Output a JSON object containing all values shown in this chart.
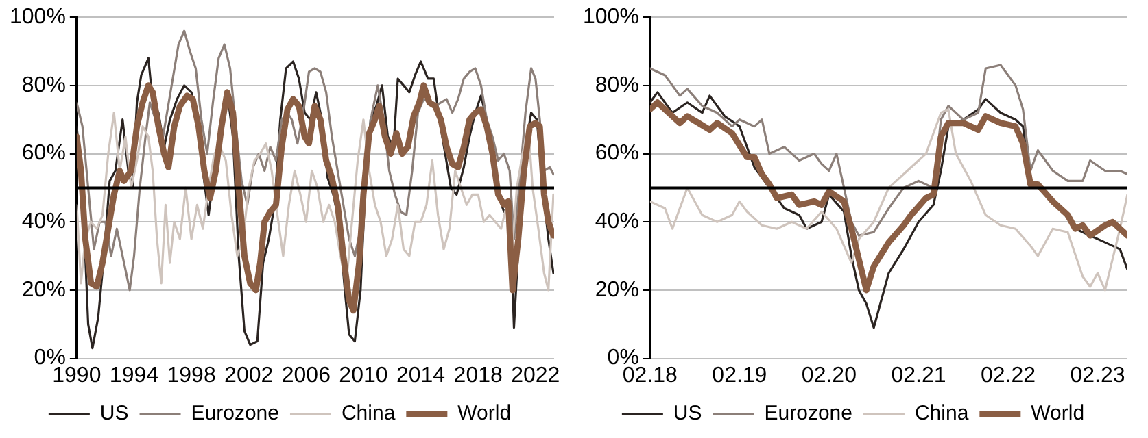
{
  "chart_data": [
    {
      "type": "line",
      "xlim": [
        1990,
        2023.3
      ],
      "xticks": [
        1990,
        1994,
        1998,
        2002,
        2006,
        2010,
        2014,
        2018,
        2022
      ],
      "ylim": [
        0,
        100
      ],
      "yticks": [
        {
          "value": 0,
          "label": "0%"
        },
        {
          "value": 20,
          "label": "20%"
        },
        {
          "value": 40,
          "label": "40%"
        },
        {
          "value": 60,
          "label": "60%"
        },
        {
          "value": 80,
          "label": "80%"
        },
        {
          "value": 100,
          "label": "100%"
        }
      ],
      "grid": "y",
      "legend": "bottom",
      "marker": "none",
      "line_style": "solid",
      "ref_lines": [
        {
          "axis": "y",
          "value": 50,
          "color": "#000000"
        }
      ],
      "series": [
        {
          "name": "US",
          "color": "#2b2421",
          "x": [
            1990,
            1990.4,
            1990.8,
            1991.1,
            1991.5,
            1991.9,
            1992.3,
            1992.7,
            1993.2,
            1993.6,
            1993.9,
            1994.2,
            1994.5,
            1995.0,
            1995.3,
            1995.7,
            1996.1,
            1996.5,
            1997.0,
            1997.5,
            1998.0,
            1998.4,
            1998.8,
            1999.2,
            1999.6,
            2000.0,
            2000.5,
            2000.9,
            2001.3,
            2001.7,
            2002.1,
            2002.6,
            2003.0,
            2003.4,
            2003.8,
            2004.2,
            2004.6,
            2005.1,
            2005.5,
            2005.9,
            2006.3,
            2006.7,
            2007.1,
            2007.5,
            2007.9,
            2008.3,
            2008.7,
            2009.0,
            2009.4,
            2009.8,
            2010.1,
            2010.5,
            2010.9,
            2011.3,
            2011.7,
            2012.1,
            2012.4,
            2012.8,
            2013.2,
            2013.6,
            2014.0,
            2014.5,
            2014.9,
            2015.3,
            2015.7,
            2016.1,
            2016.5,
            2017.0,
            2017.4,
            2017.8,
            2018.2,
            2018.6,
            2019.0,
            2019.4,
            2019.8,
            2020.2,
            2020.5,
            2020.9,
            2021.3,
            2021.7,
            2022.1,
            2022.5,
            2022.9,
            2023.25
          ],
          "values": [
            68,
            50,
            10,
            3,
            12,
            30,
            52,
            55,
            70,
            55,
            50,
            75,
            83,
            88,
            75,
            72,
            62,
            70,
            76,
            80,
            78,
            72,
            55,
            42,
            55,
            68,
            78,
            65,
            30,
            8,
            4,
            5,
            28,
            35,
            45,
            70,
            85,
            87,
            82,
            72,
            70,
            78,
            70,
            53,
            48,
            40,
            20,
            7,
            5,
            20,
            48,
            70,
            74,
            80,
            65,
            62,
            82,
            80,
            78,
            83,
            87,
            82,
            82,
            70,
            60,
            50,
            48,
            56,
            65,
            72,
            77,
            70,
            58,
            48,
            43,
            45,
            9,
            40,
            62,
            72,
            70,
            50,
            35,
            25
          ]
        },
        {
          "name": "Eurozone",
          "color": "#8c7f79",
          "x": [
            1990,
            1990.4,
            1990.8,
            1991.2,
            1991.6,
            1992.0,
            1992.4,
            1992.8,
            1993.2,
            1993.7,
            1994.0,
            1994.4,
            1994.8,
            1995.1,
            1995.5,
            1995.9,
            1996.3,
            1996.7,
            1997.1,
            1997.5,
            1997.9,
            1998.3,
            1998.7,
            1999.1,
            1999.5,
            1999.9,
            2000.3,
            2000.7,
            2001.1,
            2001.5,
            2001.9,
            2002.3,
            2002.7,
            2003.1,
            2003.5,
            2003.9,
            2004.3,
            2004.7,
            2005.0,
            2005.4,
            2005.8,
            2006.2,
            2006.6,
            2007.0,
            2007.4,
            2007.8,
            2008.2,
            2008.6,
            2009.0,
            2009.4,
            2009.8,
            2010.2,
            2010.6,
            2011.0,
            2011.4,
            2011.8,
            2012.2,
            2012.6,
            2013.0,
            2013.4,
            2013.8,
            2014.2,
            2014.6,
            2015.0,
            2015.4,
            2015.8,
            2016.2,
            2016.6,
            2017.0,
            2017.4,
            2017.8,
            2018.2,
            2018.6,
            2019.0,
            2019.4,
            2019.8,
            2020.2,
            2020.5,
            2020.9,
            2021.3,
            2021.7,
            2022.0,
            2022.3,
            2022.6,
            2023.0,
            2023.25
          ],
          "values": [
            75,
            68,
            50,
            32,
            40,
            40,
            30,
            38,
            30,
            20,
            30,
            50,
            65,
            75,
            70,
            62,
            72,
            82,
            92,
            96,
            90,
            85,
            70,
            60,
            75,
            88,
            92,
            85,
            68,
            52,
            45,
            56,
            60,
            55,
            62,
            58,
            70,
            72,
            70,
            63,
            72,
            84,
            85,
            84,
            78,
            65,
            55,
            45,
            35,
            30,
            38,
            60,
            72,
            80,
            70,
            55,
            48,
            43,
            42,
            55,
            72,
            76,
            75,
            74,
            75,
            76,
            72,
            76,
            82,
            84,
            85,
            80,
            70,
            65,
            58,
            60,
            55,
            35,
            52,
            72,
            85,
            82,
            70,
            55,
            56,
            54
          ]
        },
        {
          "name": "China",
          "color": "#cfc4bd",
          "x": [
            1990,
            1990.3,
            1990.6,
            1991.0,
            1991.4,
            1991.8,
            1992.2,
            1992.6,
            1993.0,
            1993.4,
            1993.8,
            1994.2,
            1994.6,
            1995.0,
            1995.3,
            1995.6,
            1995.9,
            1996.2,
            1996.5,
            1996.8,
            1997.2,
            1997.6,
            1998.0,
            1998.4,
            1998.8,
            1999.2,
            1999.6,
            2000.0,
            2000.4,
            2000.8,
            2001.2,
            2001.6,
            2002.0,
            2002.4,
            2002.8,
            2003.2,
            2003.6,
            2004.0,
            2004.4,
            2004.8,
            2005.2,
            2005.6,
            2006.0,
            2006.4,
            2006.8,
            2007.2,
            2007.6,
            2008.0,
            2008.4,
            2008.8,
            2009.2,
            2009.6,
            2010.0,
            2010.4,
            2010.8,
            2011.2,
            2011.6,
            2012.0,
            2012.4,
            2012.8,
            2013.2,
            2013.6,
            2014.0,
            2014.4,
            2014.8,
            2015.2,
            2015.6,
            2016.0,
            2016.4,
            2016.8,
            2017.2,
            2017.6,
            2018.0,
            2018.4,
            2018.8,
            2019.2,
            2019.6,
            2020.0,
            2020.3,
            2020.7,
            2021.1,
            2021.5,
            2021.8,
            2022.2,
            2022.6,
            2022.9,
            2023.25
          ],
          "values": [
            45,
            22,
            35,
            40,
            38,
            42,
            60,
            72,
            55,
            65,
            50,
            58,
            68,
            65,
            55,
            35,
            22,
            45,
            28,
            40,
            35,
            50,
            35,
            45,
            38,
            50,
            60,
            62,
            58,
            42,
            30,
            35,
            50,
            58,
            60,
            63,
            55,
            42,
            30,
            45,
            55,
            48,
            40,
            55,
            50,
            40,
            45,
            40,
            30,
            22,
            40,
            58,
            70,
            55,
            45,
            40,
            30,
            35,
            45,
            32,
            30,
            40,
            40,
            45,
            58,
            42,
            32,
            38,
            55,
            50,
            45,
            48,
            48,
            40,
            42,
            40,
            38,
            45,
            28,
            50,
            60,
            68,
            50,
            38,
            25,
            20,
            48
          ]
        },
        {
          "name": "World",
          "color": "#8b5e44",
          "x": [
            1990.0,
            1990.3,
            1990.6,
            1991.0,
            1991.4,
            1991.8,
            1992.2,
            1992.6,
            1993.0,
            1993.3,
            1993.8,
            1994.2,
            1994.6,
            1995.0,
            1995.3,
            1995.7,
            1996.1,
            1996.4,
            1996.8,
            1997.2,
            1997.7,
            1998.1,
            1998.5,
            1998.9,
            1999.3,
            1999.7,
            2000.1,
            2000.5,
            2000.9,
            2001.3,
            2001.7,
            2002.1,
            2002.5,
            2002.8,
            2003.1,
            2003.5,
            2003.9,
            2004.3,
            2004.7,
            2005.1,
            2005.5,
            2005.9,
            2006.2,
            2006.6,
            2007.0,
            2007.4,
            2007.8,
            2008.2,
            2008.6,
            2009.0,
            2009.3,
            2009.7,
            2010.0,
            2010.4,
            2010.8,
            2011.1,
            2011.5,
            2011.9,
            2012.3,
            2012.7,
            2013.1,
            2013.5,
            2013.9,
            2014.2,
            2014.6,
            2015.0,
            2015.4,
            2015.8,
            2016.2,
            2016.6,
            2017.0,
            2017.4,
            2017.8,
            2018.2,
            2018.6,
            2019.0,
            2019.4,
            2019.8,
            2020.1,
            2020.4,
            2020.8,
            2021.2,
            2021.6,
            2022.0,
            2022.3,
            2022.6,
            2022.9,
            2023.25
          ],
          "values": [
            65,
            55,
            35,
            22,
            21,
            28,
            38,
            48,
            55,
            52,
            55,
            68,
            75,
            80,
            78,
            68,
            60,
            56,
            68,
            74,
            77,
            76,
            68,
            55,
            47,
            55,
            68,
            78,
            72,
            50,
            30,
            22,
            20,
            28,
            40,
            43,
            45,
            62,
            73,
            76,
            74,
            65,
            63,
            74,
            70,
            58,
            53,
            45,
            30,
            17,
            14,
            28,
            48,
            66,
            70,
            74,
            65,
            60,
            66,
            60,
            62,
            71,
            75,
            80,
            75,
            74,
            70,
            62,
            57,
            56,
            62,
            70,
            72,
            73,
            68,
            60,
            48,
            45,
            46,
            20,
            35,
            55,
            68,
            69,
            68,
            48,
            40,
            36
          ]
        }
      ]
    },
    {
      "type": "line",
      "xlim": [
        "2018-02",
        "2023-06"
      ],
      "xticks": [
        {
          "value": "2018-02",
          "label": "02.18"
        },
        {
          "value": "2019-02",
          "label": "02.19"
        },
        {
          "value": "2020-02",
          "label": "02.20"
        },
        {
          "value": "2021-02",
          "label": "02.21"
        },
        {
          "value": "2022-02",
          "label": "02.22"
        },
        {
          "value": "2023-02",
          "label": "02.23"
        }
      ],
      "ylim": [
        0,
        100
      ],
      "yticks": [
        {
          "value": 0,
          "label": "0%"
        },
        {
          "value": 20,
          "label": "20%"
        },
        {
          "value": 40,
          "label": "40%"
        },
        {
          "value": 60,
          "label": "60%"
        },
        {
          "value": 80,
          "label": "80%"
        },
        {
          "value": 100,
          "label": "100%"
        }
      ],
      "grid": "y",
      "legend": "bottom",
      "marker": "none",
      "line_style": "solid",
      "ref_lines": [
        {
          "axis": "y",
          "value": 50,
          "color": "#000000"
        }
      ],
      "series": [
        {
          "name": "US",
          "color": "#2b2421",
          "x": [
            "2018-02",
            "2018-03",
            "2018-05",
            "2018-07",
            "2018-09",
            "2018-10",
            "2018-12",
            "2019-02",
            "2019-04",
            "2019-06",
            "2019-08",
            "2019-10",
            "2019-11",
            "2020-01",
            "2020-02",
            "2020-04",
            "2020-05",
            "2020-06",
            "2020-07",
            "2020-08",
            "2020-10",
            "2020-12",
            "2021-02",
            "2021-04",
            "2021-05",
            "2021-06",
            "2021-08",
            "2021-10",
            "2021-11",
            "2022-01",
            "2022-03",
            "2022-04",
            "2022-05",
            "2022-07",
            "2022-09",
            "2022-11",
            "2023-01",
            "2023-03",
            "2023-05",
            "2023-06"
          ],
          "values": [
            75,
            78,
            72,
            75,
            72,
            77,
            71,
            68,
            56,
            50,
            44,
            42,
            38,
            40,
            48,
            43,
            30,
            20,
            16,
            9,
            25,
            32,
            40,
            45,
            55,
            68,
            70,
            73,
            76,
            72,
            70,
            68,
            52,
            48,
            44,
            38,
            36,
            34,
            32,
            26
          ]
        },
        {
          "name": "Eurozone",
          "color": "#8c7f79",
          "x": [
            "2018-02",
            "2018-04",
            "2018-06",
            "2018-07",
            "2018-09",
            "2018-11",
            "2019-01",
            "2019-02",
            "2019-04",
            "2019-05",
            "2019-06",
            "2019-08",
            "2019-10",
            "2019-12",
            "2020-01",
            "2020-02",
            "2020-03",
            "2020-05",
            "2020-06",
            "2020-08",
            "2020-10",
            "2020-12",
            "2021-02",
            "2021-04",
            "2021-05",
            "2021-06",
            "2021-08",
            "2021-10",
            "2021-11",
            "2022-01",
            "2022-03",
            "2022-04",
            "2022-05",
            "2022-06",
            "2022-08",
            "2022-10",
            "2022-12",
            "2023-01",
            "2023-03",
            "2023-05",
            "2023-06"
          ],
          "values": [
            85,
            83,
            77,
            79,
            74,
            72,
            68,
            70,
            68,
            70,
            60,
            62,
            58,
            60,
            57,
            55,
            60,
            40,
            36,
            37,
            44,
            50,
            52,
            50,
            70,
            74,
            70,
            72,
            85,
            86,
            80,
            73,
            55,
            61,
            55,
            52,
            52,
            58,
            55,
            55,
            54
          ]
        },
        {
          "name": "China",
          "color": "#cfc4bd",
          "x": [
            "2018-02",
            "2018-04",
            "2018-05",
            "2018-07",
            "2018-09",
            "2018-11",
            "2019-01",
            "2019-02",
            "2019-03",
            "2019-05",
            "2019-07",
            "2019-09",
            "2019-11",
            "2020-01",
            "2020-03",
            "2020-05",
            "2020-06",
            "2020-08",
            "2020-10",
            "2020-12",
            "2021-02",
            "2021-03",
            "2021-05",
            "2021-06",
            "2021-07",
            "2021-09",
            "2021-11",
            "2022-01",
            "2022-03",
            "2022-05",
            "2022-06",
            "2022-08",
            "2022-10",
            "2022-12",
            "2023-01",
            "2023-02",
            "2023-03",
            "2023-05",
            "2023-06"
          ],
          "values": [
            46,
            44,
            38,
            50,
            42,
            40,
            42,
            46,
            43,
            39,
            38,
            40,
            38,
            43,
            38,
            28,
            35,
            40,
            50,
            54,
            58,
            60,
            72,
            73,
            60,
            52,
            42,
            39,
            38,
            33,
            30,
            38,
            37,
            24,
            21,
            25,
            20,
            38,
            48
          ]
        },
        {
          "name": "World",
          "color": "#8b5e44",
          "x": [
            "2018-02",
            "2018-03",
            "2018-06",
            "2018-07",
            "2018-10",
            "2018-11",
            "2019-01",
            "2019-03",
            "2019-04",
            "2019-05",
            "2019-06",
            "2019-07",
            "2019-09",
            "2019-10",
            "2019-12",
            "2020-01",
            "2020-02",
            "2020-04",
            "2020-05",
            "2020-06",
            "2020-07",
            "2020-08",
            "2020-10",
            "2020-12",
            "2021-01",
            "2021-03",
            "2021-04",
            "2021-05",
            "2021-06",
            "2021-08",
            "2021-10",
            "2021-11",
            "2022-01",
            "2022-03",
            "2022-04",
            "2022-05",
            "2022-06",
            "2022-08",
            "2022-10",
            "2022-11",
            "2022-12",
            "2023-01",
            "2023-03",
            "2023-04",
            "2023-06"
          ],
          "values": [
            73,
            75,
            69,
            71,
            67,
            69,
            66,
            59,
            59,
            54,
            51,
            47,
            48,
            45,
            46,
            45,
            49,
            46,
            38,
            29,
            20,
            27,
            34,
            39,
            42,
            47,
            48,
            65,
            69,
            69,
            67,
            71,
            69,
            68,
            63,
            51,
            51,
            46,
            42,
            38,
            39,
            36,
            39,
            40,
            36
          ]
        }
      ]
    }
  ]
}
